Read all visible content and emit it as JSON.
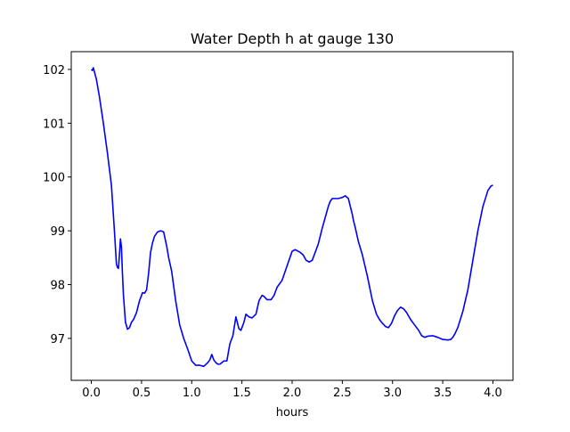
{
  "chart_data": {
    "type": "line",
    "title": "Water Depth h at gauge 130",
    "xlabel": "hours",
    "ylabel": "",
    "xlim": [
      -0.2,
      4.2
    ],
    "ylim": [
      96.22,
      102.33
    ],
    "xticks": [
      0.0,
      0.5,
      1.0,
      1.5,
      2.0,
      2.5,
      3.0,
      3.5,
      4.0
    ],
    "xtick_labels": [
      "0.0",
      "0.5",
      "1.0",
      "1.5",
      "2.0",
      "2.5",
      "3.0",
      "3.5",
      "4.0"
    ],
    "yticks": [
      97,
      98,
      99,
      100,
      101,
      102
    ],
    "ytick_labels": [
      "97",
      "98",
      "99",
      "100",
      "101",
      "102"
    ],
    "grid": false,
    "line_color": "#0000ff",
    "series": [
      {
        "x": [
          0.0,
          0.01,
          0.02,
          0.05,
          0.08,
          0.12,
          0.16,
          0.2,
          0.23,
          0.25,
          0.26,
          0.27,
          0.28,
          0.29,
          0.3,
          0.31,
          0.32,
          0.34,
          0.36,
          0.38,
          0.4,
          0.42,
          0.45,
          0.48,
          0.51,
          0.53,
          0.55,
          0.57,
          0.59,
          0.61,
          0.63,
          0.66,
          0.69,
          0.72,
          0.75,
          0.77,
          0.8,
          0.84,
          0.88,
          0.92,
          0.96,
          1.0,
          1.04,
          1.08,
          1.12,
          1.16,
          1.18,
          1.2,
          1.22,
          1.24,
          1.26,
          1.28,
          1.3,
          1.32,
          1.35,
          1.38,
          1.41,
          1.44,
          1.47,
          1.49,
          1.5,
          1.52,
          1.54,
          1.57,
          1.6,
          1.64,
          1.67,
          1.7,
          1.72,
          1.75,
          1.79,
          1.82,
          1.85,
          1.9,
          1.95,
          2.0,
          2.03,
          2.06,
          2.08,
          2.11,
          2.14,
          2.17,
          2.2,
          2.23,
          2.26,
          2.3,
          2.33,
          2.36,
          2.38,
          2.4,
          2.43,
          2.46,
          2.5,
          2.53,
          2.56,
          2.6,
          2.61,
          2.63,
          2.66,
          2.7,
          2.75,
          2.8,
          2.84,
          2.87,
          2.9,
          2.93,
          2.96,
          2.99,
          3.02,
          3.05,
          3.08,
          3.11,
          3.14,
          3.18,
          3.22,
          3.26,
          3.29,
          3.32,
          3.35,
          3.4,
          3.45,
          3.5,
          3.55,
          3.58,
          3.6,
          3.62,
          3.65,
          3.7,
          3.75,
          3.8,
          3.85,
          3.9,
          3.95,
          3.98,
          4.0
        ],
        "values": [
          102.0,
          101.98,
          102.03,
          101.82,
          101.5,
          101.0,
          100.45,
          99.85,
          99.0,
          98.38,
          98.32,
          98.3,
          98.55,
          98.85,
          98.7,
          98.2,
          97.8,
          97.3,
          97.17,
          97.2,
          97.3,
          97.35,
          97.48,
          97.7,
          97.85,
          97.84,
          97.9,
          98.2,
          98.6,
          98.78,
          98.9,
          98.98,
          99.0,
          98.98,
          98.72,
          98.5,
          98.25,
          97.7,
          97.25,
          97.0,
          96.8,
          96.58,
          96.5,
          96.5,
          96.48,
          96.55,
          96.6,
          96.7,
          96.6,
          96.55,
          96.52,
          96.52,
          96.55,
          96.58,
          96.58,
          96.9,
          97.05,
          97.4,
          97.18,
          97.15,
          97.2,
          97.3,
          97.45,
          97.4,
          97.38,
          97.45,
          97.7,
          97.8,
          97.78,
          97.72,
          97.72,
          97.8,
          97.95,
          98.08,
          98.35,
          98.62,
          98.65,
          98.62,
          98.6,
          98.55,
          98.45,
          98.42,
          98.45,
          98.6,
          98.75,
          99.05,
          99.25,
          99.45,
          99.55,
          99.6,
          99.6,
          99.6,
          99.62,
          99.65,
          99.6,
          99.3,
          99.2,
          99.05,
          98.8,
          98.55,
          98.15,
          97.7,
          97.45,
          97.35,
          97.28,
          97.22,
          97.2,
          97.28,
          97.42,
          97.52,
          97.58,
          97.55,
          97.48,
          97.35,
          97.25,
          97.15,
          97.05,
          97.02,
          97.04,
          97.05,
          97.02,
          96.98,
          96.97,
          96.98,
          97.02,
          97.08,
          97.2,
          97.5,
          97.9,
          98.45,
          99.0,
          99.45,
          99.75,
          99.83,
          99.85
        ]
      }
    ]
  }
}
